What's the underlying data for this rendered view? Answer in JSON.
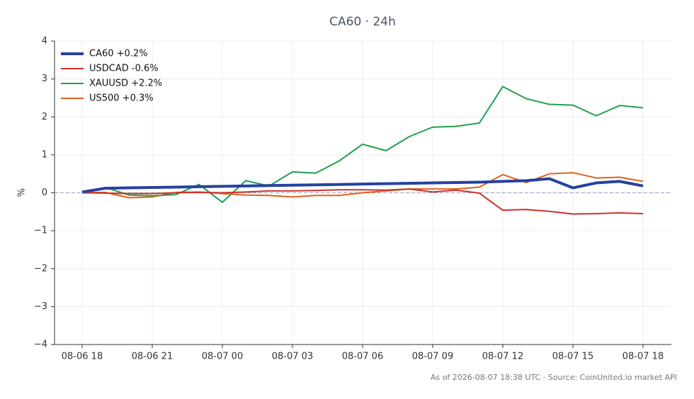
{
  "chart_data": {
    "type": "line",
    "title": "CA60 · 24h",
    "y_label": "%",
    "footer": "As of 2026-08-07 18:38 UTC · Source: CoinUnited.io market API",
    "categories": [
      "08-06 18",
      null,
      null,
      "08-06 21",
      null,
      null,
      "08-07 00",
      null,
      null,
      "08-07 03",
      null,
      null,
      "08-07 06",
      null,
      null,
      "08-07 09",
      null,
      null,
      "08-07 12",
      null,
      null,
      "08-07 15",
      null,
      null,
      "08-07 18"
    ],
    "ylim": [
      -4,
      4
    ],
    "yticks": [
      {
        "value": -4,
        "label": "−4"
      },
      {
        "value": -3,
        "label": "−3"
      },
      {
        "value": -2,
        "label": "−2"
      },
      {
        "value": -1,
        "label": "−1"
      },
      0,
      1,
      2,
      3,
      4
    ],
    "grid": true,
    "legend": "upper-left",
    "series": [
      {
        "name": "CA60 +0.2%",
        "color": "#2541a0",
        "width": 4,
        "values": [
          0.02,
          0.12,
          0.13,
          0.14,
          0.15,
          0.16,
          0.17,
          0.18,
          0.19,
          0.2,
          0.21,
          0.22,
          0.23,
          0.24,
          0.25,
          0.26,
          0.27,
          0.28,
          0.3,
          0.32,
          0.37,
          0.13,
          0.26,
          0.3,
          0.18
        ]
      },
      {
        "name": "USDCAD -0.6%",
        "color": "#d0302c",
        "width": 2,
        "values": [
          0,
          -0.01,
          -0.02,
          -0.02,
          0,
          0.01,
          0,
          0.02,
          0.05,
          0.05,
          0.06,
          0.08,
          0.08,
          0.07,
          0.1,
          0.02,
          0.07,
          -0.01,
          -0.46,
          -0.44,
          -0.49,
          -0.56,
          -0.55,
          -0.53,
          -0.55
        ]
      },
      {
        "name": "XAUUSD +2.2%",
        "color": "#22a04c",
        "width": 2,
        "values": [
          0.02,
          0.14,
          -0.06,
          -0.08,
          -0.05,
          0.22,
          -0.25,
          0.32,
          0.18,
          0.55,
          0.52,
          0.84,
          1.28,
          1.11,
          1.48,
          1.73,
          1.75,
          1.84,
          2.8,
          2.48,
          2.33,
          2.31,
          2.03,
          2.3,
          2.24
        ]
      },
      {
        "name": "US500 +0.3%",
        "color": "#e0601c",
        "width": 2,
        "values": [
          0.01,
          0.01,
          -0.13,
          -0.11,
          0.01,
          0.02,
          -0.02,
          -0.06,
          -0.07,
          -0.11,
          -0.07,
          -0.07,
          0,
          0.05,
          0.1,
          0.1,
          0.1,
          0.15,
          0.48,
          0.27,
          0.5,
          0.53,
          0.39,
          0.41,
          0.3
        ]
      }
    ]
  }
}
